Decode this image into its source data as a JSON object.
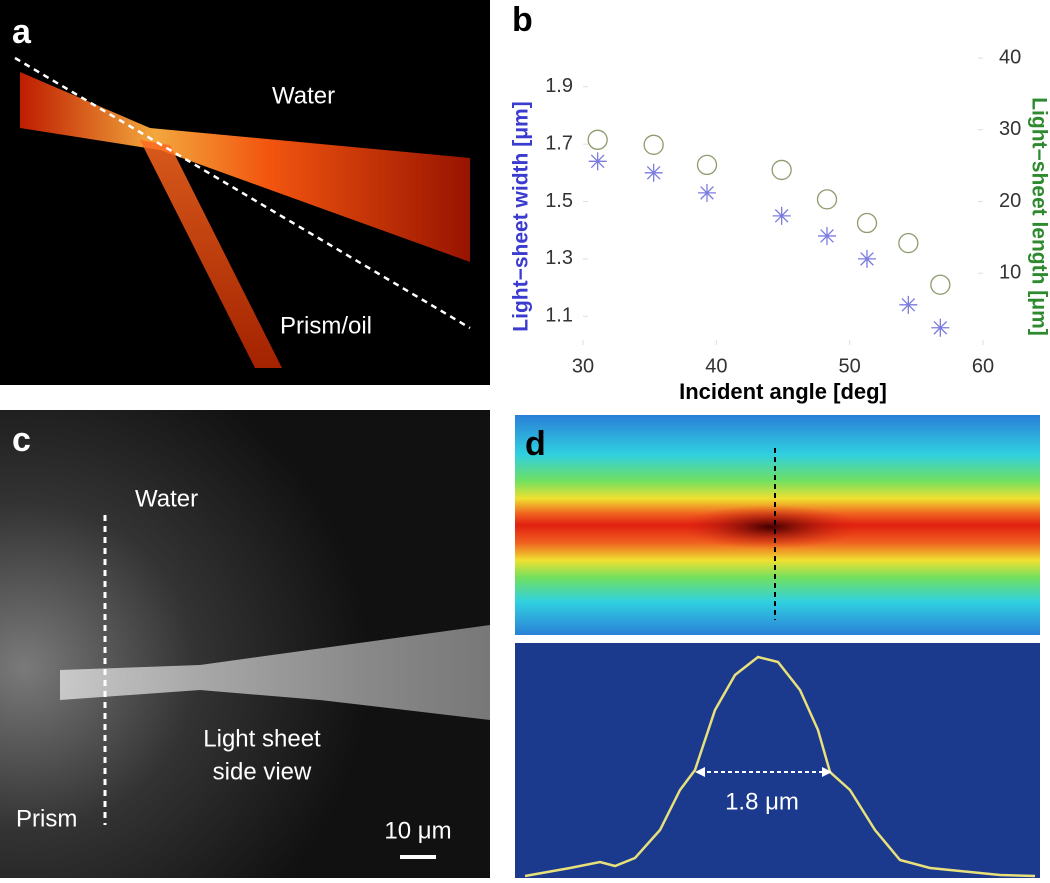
{
  "panels": {
    "a": {
      "label": "a",
      "water": "Water",
      "prism": "Prism/oil"
    },
    "c": {
      "label": "c",
      "water": "Water",
      "sheet_line1": "Light sheet",
      "sheet_line2": "side view",
      "prism": "Prism",
      "scale": "10 μm"
    },
    "d": {
      "label": "d",
      "fwhm": "1.8 μm"
    }
  },
  "chart_data": {
    "type": "scatter",
    "panel_label": "b",
    "x_label": "Incident angle [deg]",
    "y_label": "Light−sheet width [μm]",
    "y2_label": "Light−sheet length [μm]",
    "x": [
      31.1,
      35.3,
      39.3,
      44.9,
      48.3,
      51.3,
      54.4,
      56.8
    ],
    "series": [
      {
        "color": "#7b7be0",
        "marker": "star",
        "values": [
          1.64,
          1.6,
          1.53,
          1.45,
          1.38,
          1.3,
          1.14,
          1.06
        ]
      },
      {
        "color": "#8c9c6c",
        "marker": "circle",
        "axis": "y2",
        "values": [
          28.6,
          27.9,
          25.1,
          24.4,
          20.3,
          17.0,
          14.2,
          8.4
        ]
      }
    ],
    "xlim": [
      30,
      60
    ],
    "xticks": [
      30,
      40,
      50,
      60
    ],
    "ylim": [
      1.0,
      2.0
    ],
    "yticks": [
      1.1,
      1.3,
      1.5,
      1.7,
      1.9
    ],
    "y2lim": [
      0,
      40
    ],
    "y2ticks": [
      10,
      20,
      30,
      40
    ],
    "y_label_color": "#3b3bd0",
    "y2_label_color": "#2e8a2e"
  }
}
